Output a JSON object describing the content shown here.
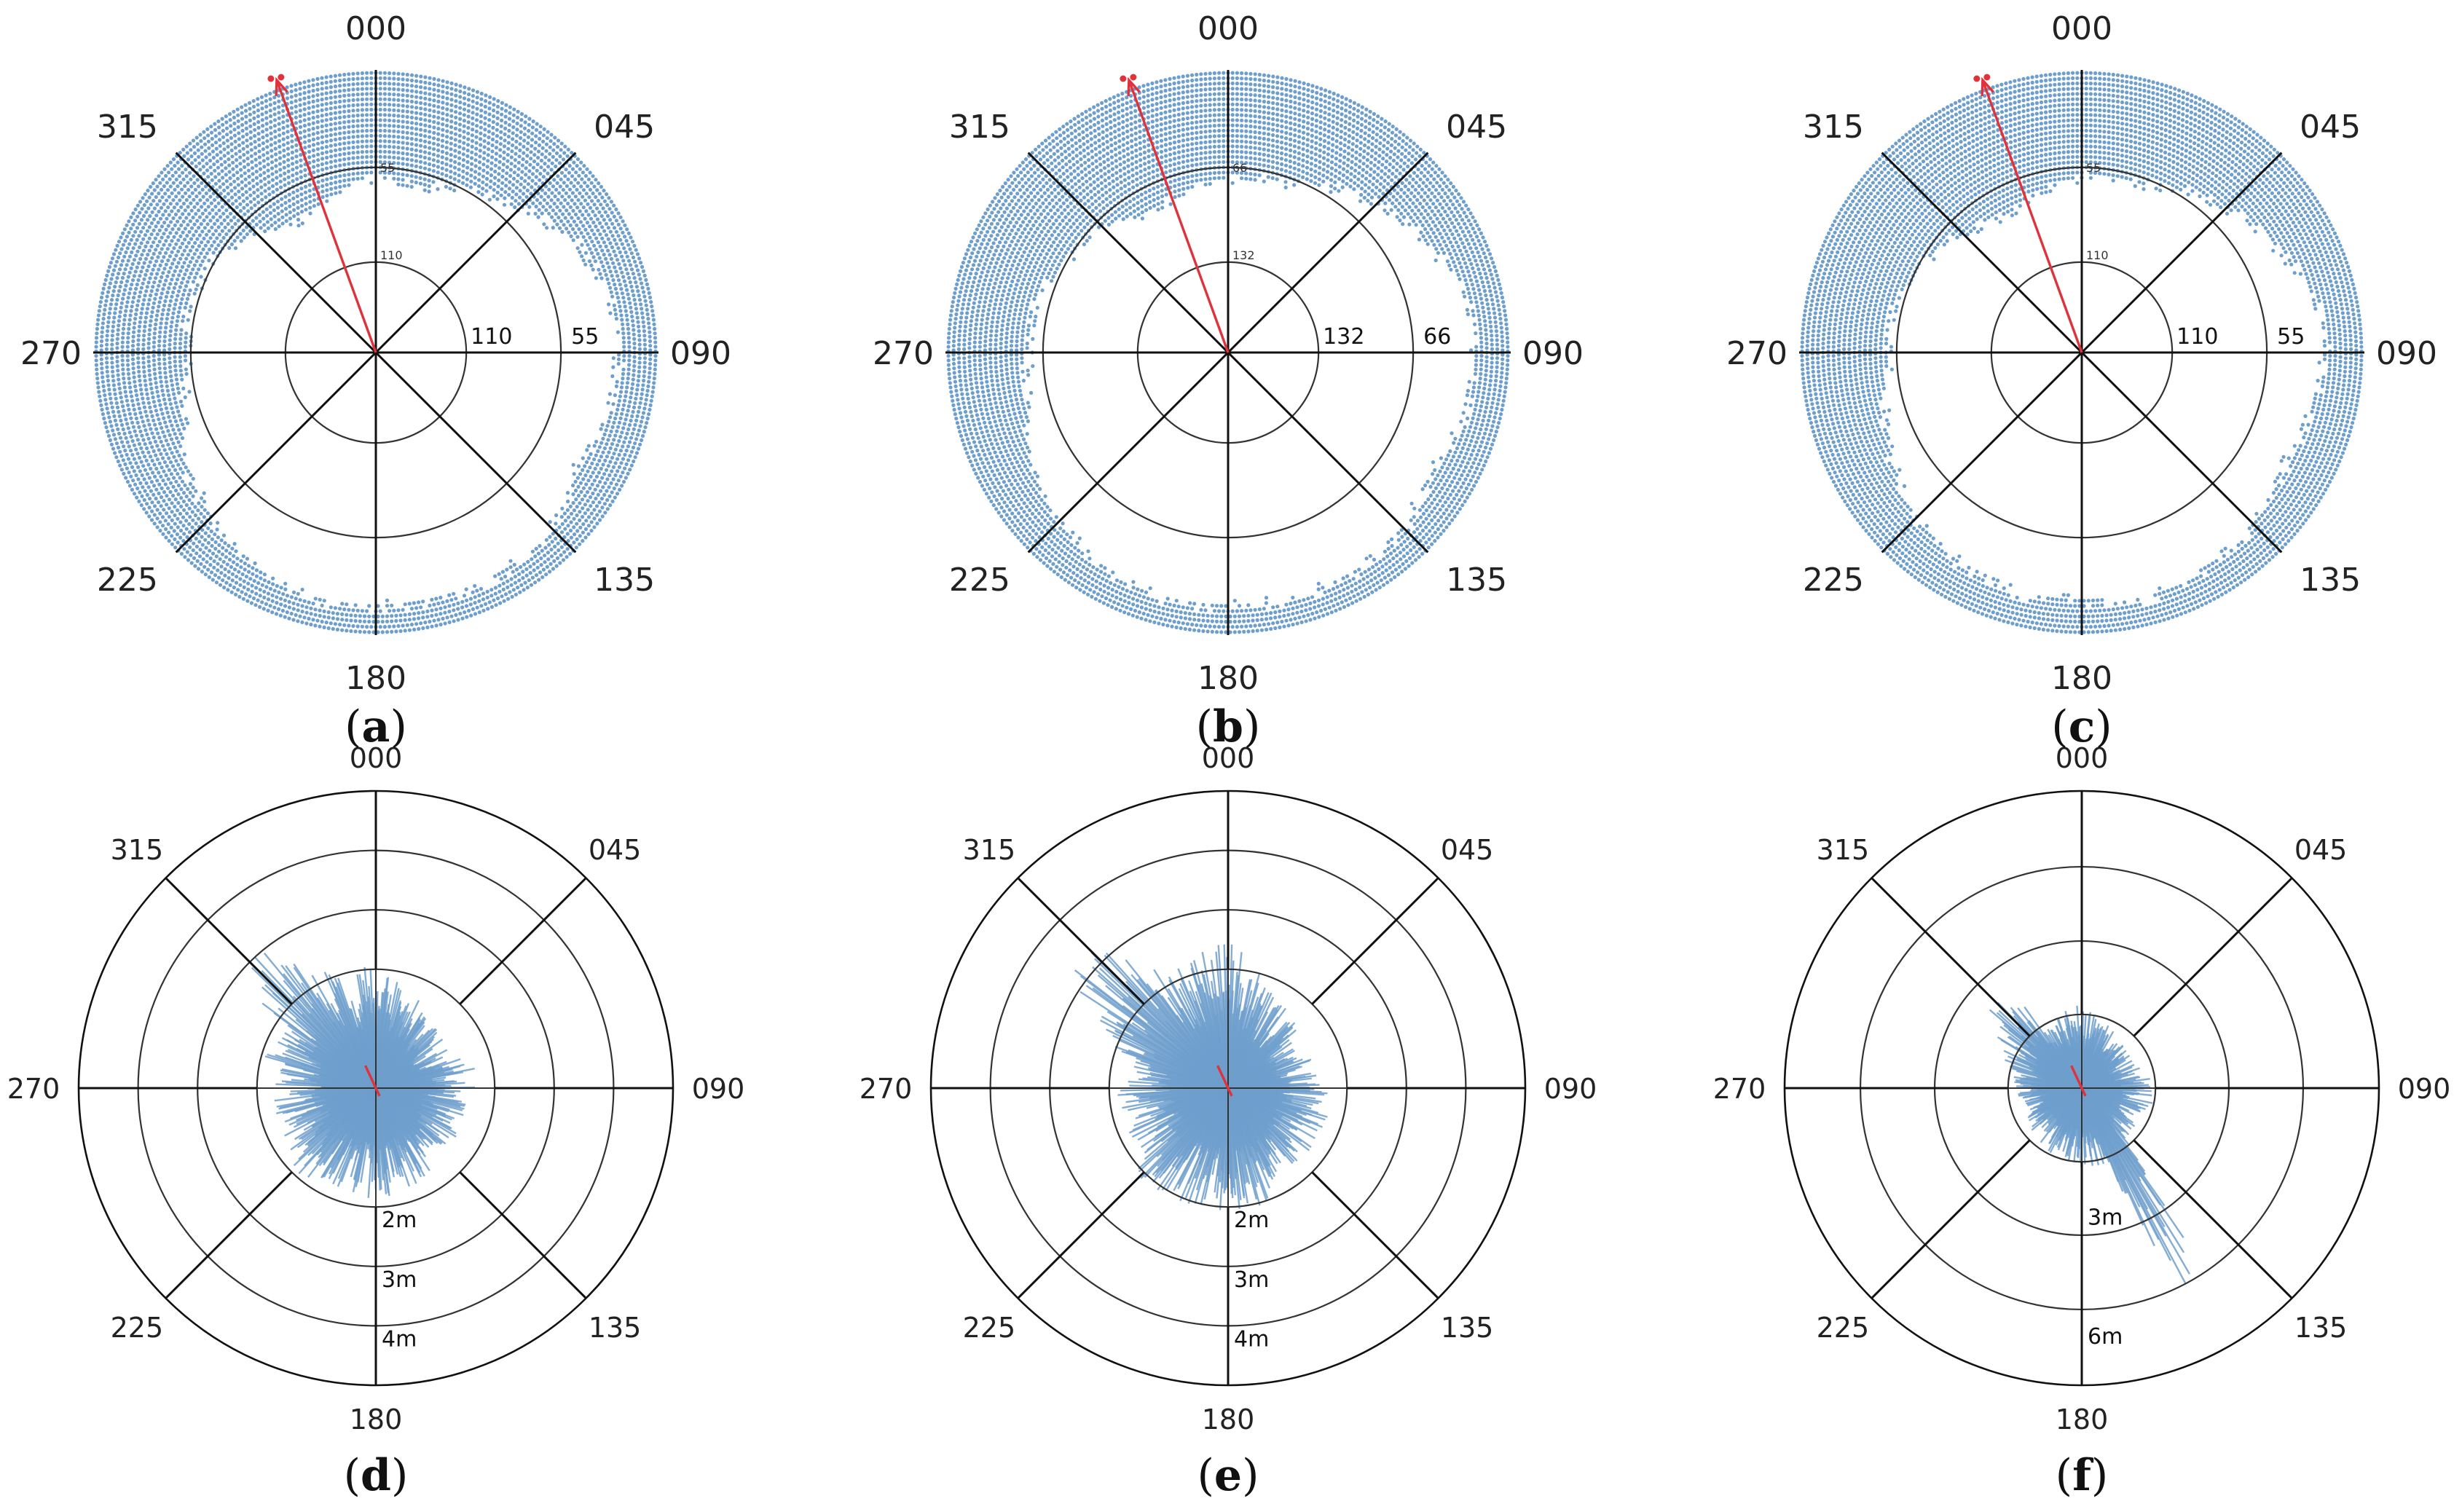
{
  "figure": {
    "panel_labels": [
      "a",
      "b",
      "c",
      "d",
      "e",
      "f"
    ],
    "colors": {
      "data": "#6e9fcc",
      "heading": "#e0323a",
      "grid": "#333333"
    }
  },
  "chart_data": [
    {
      "panel": "a",
      "type": "polar-scatter",
      "compass_labels": [
        "000",
        "045",
        "090",
        "135",
        "180",
        "225",
        "270",
        "315"
      ],
      "ring_values": [
        "110",
        "55"
      ],
      "ring_labels_north": [
        "55",
        "110"
      ],
      "heading_deg": 340,
      "depression_profile_note": "dots fill from outer edge inward; inner boundary radius as fraction of outer",
      "bearings_deg": [
        0,
        15,
        30,
        45,
        60,
        75,
        90,
        105,
        120,
        135,
        150,
        165,
        180,
        195,
        210,
        225,
        240,
        255,
        270,
        285,
        300,
        315,
        330,
        345
      ],
      "inner_boundary": [
        0.62,
        0.6,
        0.66,
        0.72,
        0.8,
        0.84,
        0.86,
        0.84,
        0.82,
        0.88,
        0.9,
        0.9,
        0.9,
        0.9,
        0.86,
        0.82,
        0.78,
        0.7,
        0.66,
        0.68,
        0.66,
        0.6,
        0.52,
        0.58
      ]
    },
    {
      "panel": "b",
      "type": "polar-scatter",
      "compass_labels": [
        "000",
        "045",
        "090",
        "135",
        "180",
        "225",
        "270",
        "315"
      ],
      "ring_values": [
        "132",
        "66"
      ],
      "ring_labels_north": [
        "66",
        "132"
      ],
      "heading_deg": 340,
      "bearings_deg": [
        0,
        15,
        30,
        45,
        60,
        75,
        90,
        105,
        120,
        135,
        150,
        165,
        180,
        195,
        210,
        225,
        240,
        255,
        270,
        285,
        300,
        315,
        330,
        345
      ],
      "inner_boundary": [
        0.62,
        0.62,
        0.68,
        0.74,
        0.8,
        0.86,
        0.88,
        0.86,
        0.84,
        0.88,
        0.9,
        0.9,
        0.9,
        0.9,
        0.88,
        0.84,
        0.8,
        0.74,
        0.7,
        0.7,
        0.66,
        0.62,
        0.56,
        0.58
      ]
    },
    {
      "panel": "c",
      "type": "polar-scatter",
      "compass_labels": [
        "000",
        "045",
        "090",
        "135",
        "180",
        "225",
        "270",
        "315"
      ],
      "ring_values": [
        "110",
        "55"
      ],
      "ring_labels_north": [
        "55",
        "110"
      ],
      "heading_deg": 340,
      "bearings_deg": [
        0,
        15,
        30,
        45,
        60,
        75,
        90,
        105,
        120,
        135,
        150,
        165,
        180,
        195,
        210,
        225,
        240,
        255,
        270,
        285,
        300,
        315,
        330,
        345
      ],
      "inner_boundary": [
        0.62,
        0.62,
        0.66,
        0.72,
        0.78,
        0.84,
        0.86,
        0.84,
        0.82,
        0.86,
        0.88,
        0.9,
        0.88,
        0.88,
        0.86,
        0.82,
        0.78,
        0.72,
        0.68,
        0.68,
        0.64,
        0.6,
        0.54,
        0.58
      ]
    },
    {
      "panel": "d",
      "type": "polar-radial-lines",
      "compass_labels": [
        "000",
        "045",
        "090",
        "135",
        "180",
        "225",
        "270",
        "315"
      ],
      "ring_labels": [
        "2m",
        "3m",
        "4m"
      ],
      "rmax_m": 5,
      "heading_deg": 335,
      "spike_bearings_deg": [
        0,
        20,
        40,
        60,
        80,
        100,
        120,
        140,
        160,
        180,
        200,
        220,
        240,
        260,
        280,
        300,
        310,
        320,
        330,
        340
      ],
      "spike_lengths_m": [
        1.8,
        1.5,
        1.3,
        1.2,
        1.5,
        1.4,
        1.4,
        1.5,
        1.6,
        1.7,
        1.6,
        1.7,
        1.6,
        1.5,
        1.6,
        1.9,
        2.4,
        2.8,
        2.0,
        1.8
      ]
    },
    {
      "panel": "e",
      "type": "polar-radial-lines",
      "compass_labels": [
        "000",
        "045",
        "090",
        "135",
        "180",
        "225",
        "270",
        "315"
      ],
      "ring_labels": [
        "2m",
        "3m",
        "4m"
      ],
      "rmax_m": 5,
      "heading_deg": 335,
      "spike_bearings_deg": [
        0,
        20,
        40,
        60,
        80,
        100,
        120,
        140,
        160,
        180,
        200,
        220,
        240,
        260,
        280,
        300,
        310,
        320,
        330,
        340
      ],
      "spike_lengths_m": [
        2.2,
        1.6,
        1.4,
        1.3,
        1.3,
        1.6,
        1.5,
        1.5,
        1.8,
        1.8,
        1.8,
        1.9,
        1.6,
        1.6,
        1.7,
        2.4,
        3.2,
        2.6,
        2.0,
        1.9
      ]
    },
    {
      "panel": "f",
      "type": "polar-radial-lines",
      "compass_labels": [
        "000",
        "045",
        "090",
        "135",
        "180",
        "225",
        "270",
        "315"
      ],
      "ring_labels": [
        "3m",
        "6m"
      ],
      "rmax_m": 12,
      "heading_deg": 335,
      "spike_bearings_deg": [
        0,
        20,
        40,
        60,
        80,
        100,
        120,
        140,
        150,
        160,
        180,
        200,
        220,
        240,
        260,
        280,
        300,
        315,
        330,
        345
      ],
      "spike_lengths_m": [
        3.0,
        2.5,
        2.2,
        2.0,
        2.4,
        2.6,
        2.2,
        2.6,
        9.6,
        3.0,
        2.8,
        2.6,
        2.4,
        2.3,
        2.3,
        2.5,
        3.4,
        4.8,
        3.0,
        2.8
      ]
    }
  ]
}
